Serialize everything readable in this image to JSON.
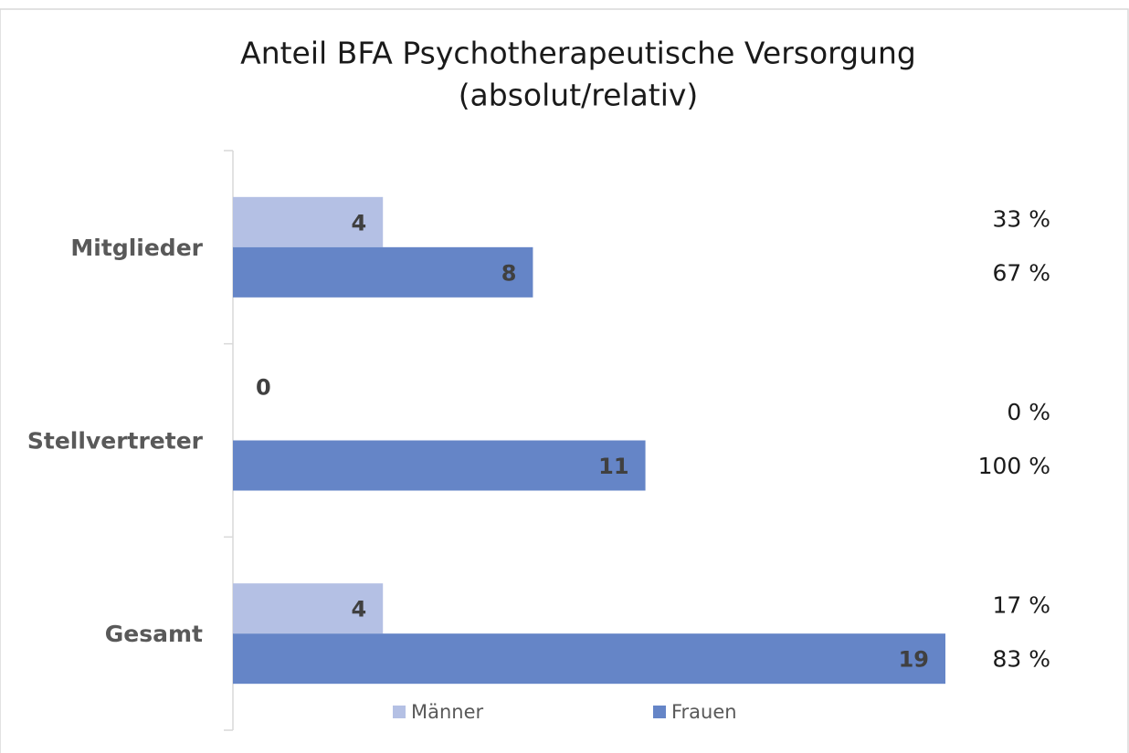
{
  "chart_data": {
    "type": "hbar",
    "title": [
      "Anteil BFA Psychotherapeutische Versorgung",
      "(absolut/relativ)"
    ],
    "categories": [
      "Mitglieder",
      "Stellvertreter",
      "Gesamt"
    ],
    "series": [
      {
        "name": "Männer",
        "color": "#b4c0e4",
        "values": [
          4,
          0,
          4
        ],
        "percent_labels": [
          "33 %",
          "0 %",
          "17 %"
        ]
      },
      {
        "name": "Frauen",
        "color": "#6585c7",
        "values": [
          8,
          11,
          19
        ],
        "percent_labels": [
          "67 %",
          "100 %",
          "83 %"
        ]
      }
    ],
    "xlim": [
      0,
      19
    ],
    "legend": "bottom"
  }
}
